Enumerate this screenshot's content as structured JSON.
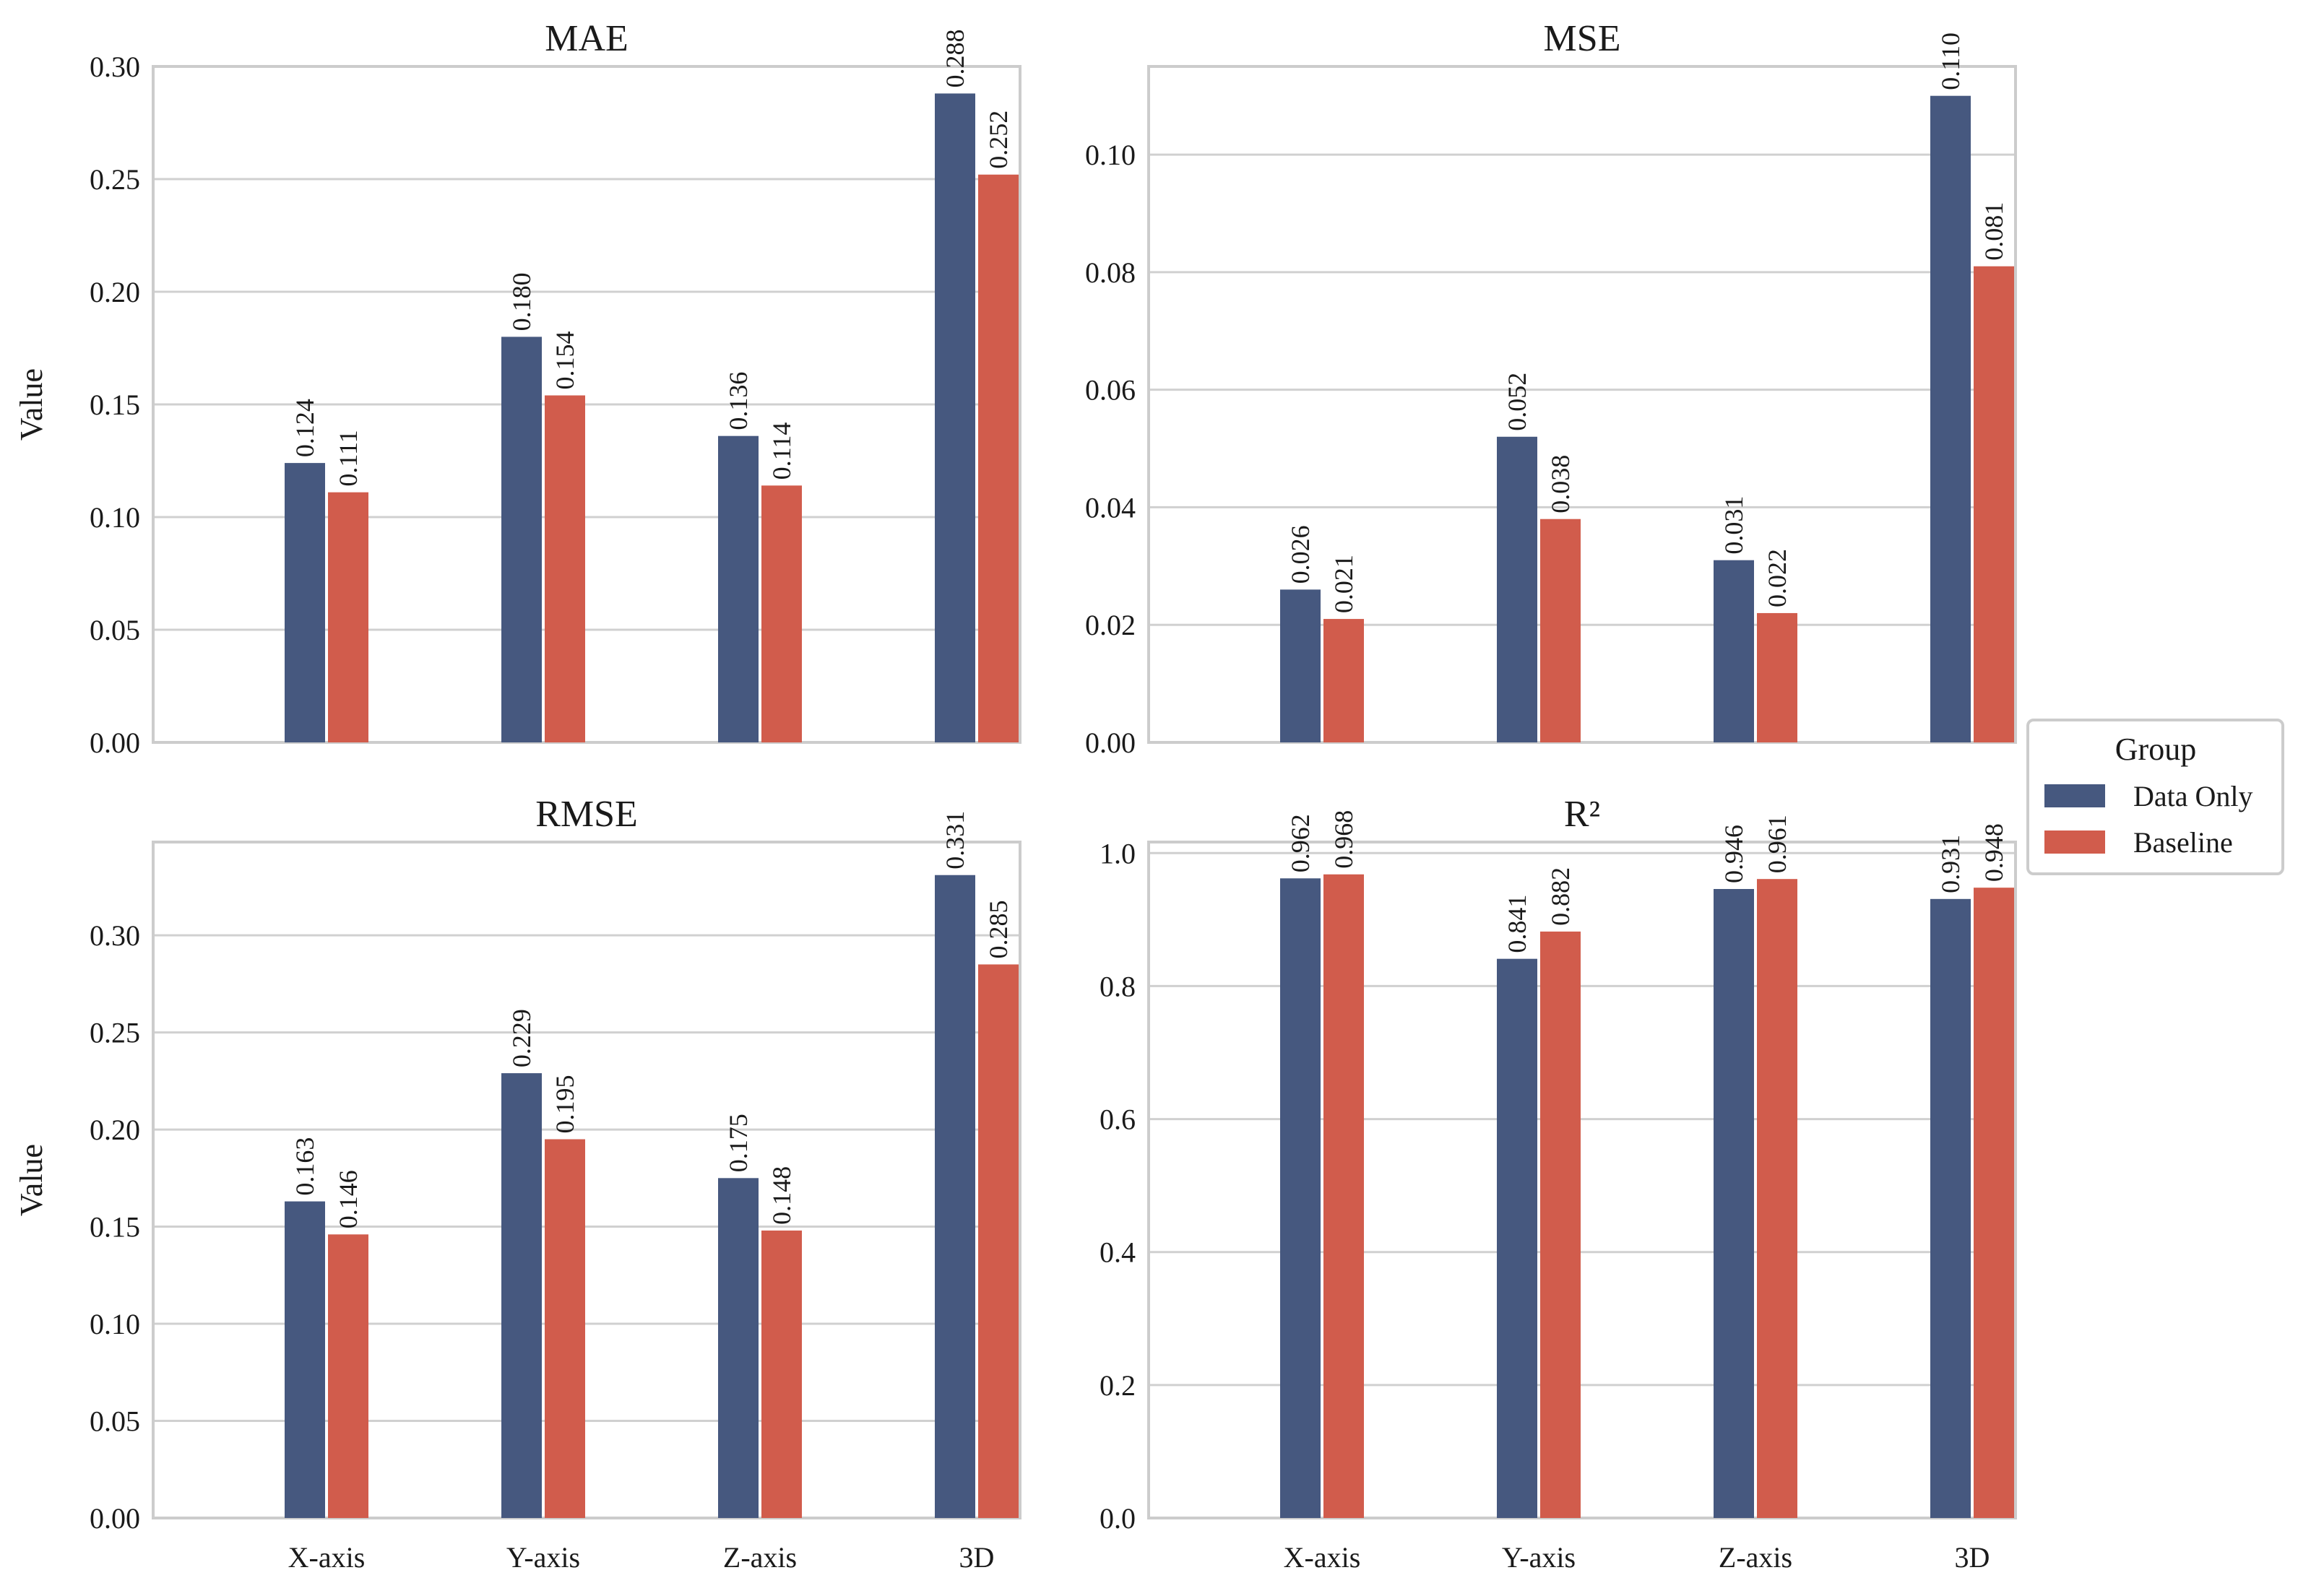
{
  "chart_data": [
    {
      "type": "bar",
      "title": "MAE",
      "xlabel": "",
      "ylabel": "Value",
      "categories": [
        "X-axis",
        "Y-axis",
        "Z-axis",
        "3D"
      ],
      "ylim": [
        0,
        0.3
      ],
      "yticks": [
        "0.00",
        "0.05",
        "0.10",
        "0.15",
        "0.20",
        "0.25",
        "0.30"
      ],
      "ytick_values": [
        0,
        0.05,
        0.1,
        0.15,
        0.2,
        0.25,
        0.3
      ],
      "show_xticks": false,
      "series": [
        {
          "name": "Data Only",
          "values": [
            0.124,
            0.18,
            0.136,
            0.288
          ],
          "labels": [
            "0.124",
            "0.180",
            "0.136",
            "0.288"
          ]
        },
        {
          "name": "Baseline",
          "values": [
            0.111,
            0.154,
            0.114,
            0.252
          ],
          "labels": [
            "0.111",
            "0.154",
            "0.114",
            "0.252"
          ]
        }
      ]
    },
    {
      "type": "bar",
      "title": "MSE",
      "xlabel": "",
      "ylabel": "",
      "categories": [
        "X-axis",
        "Y-axis",
        "Z-axis",
        "3D"
      ],
      "ylim": [
        0,
        0.115
      ],
      "yticks": [
        "0.00",
        "0.02",
        "0.04",
        "0.06",
        "0.08",
        "0.10"
      ],
      "ytick_values": [
        0,
        0.02,
        0.04,
        0.06,
        0.08,
        0.1
      ],
      "show_xticks": false,
      "series": [
        {
          "name": "Data Only",
          "values": [
            0.026,
            0.052,
            0.031,
            0.11
          ],
          "labels": [
            "0.026",
            "0.052",
            "0.031",
            "0.110"
          ]
        },
        {
          "name": "Baseline",
          "values": [
            0.021,
            0.038,
            0.022,
            0.081
          ],
          "labels": [
            "0.021",
            "0.038",
            "0.022",
            "0.081"
          ]
        }
      ]
    },
    {
      "type": "bar",
      "title": "RMSE",
      "xlabel": "",
      "ylabel": "Value",
      "categories": [
        "X-axis",
        "Y-axis",
        "Z-axis",
        "3D"
      ],
      "ylim": [
        0,
        0.348
      ],
      "yticks": [
        "0.00",
        "0.05",
        "0.10",
        "0.15",
        "0.20",
        "0.25",
        "0.30"
      ],
      "ytick_values": [
        0,
        0.05,
        0.1,
        0.15,
        0.2,
        0.25,
        0.3
      ],
      "show_xticks": true,
      "series": [
        {
          "name": "Data Only",
          "values": [
            0.163,
            0.229,
            0.175,
            0.331
          ],
          "labels": [
            "0.163",
            "0.229",
            "0.175",
            "0.331"
          ]
        },
        {
          "name": "Baseline",
          "values": [
            0.146,
            0.195,
            0.148,
            0.285
          ],
          "labels": [
            "0.146",
            "0.195",
            "0.148",
            "0.285"
          ]
        }
      ]
    },
    {
      "type": "bar",
      "title": "R²",
      "xlabel": "",
      "ylabel": "",
      "categories": [
        "X-axis",
        "Y-axis",
        "Z-axis",
        "3D"
      ],
      "ylim": [
        0,
        1.0166
      ],
      "yticks": [
        "0.0",
        "0.2",
        "0.4",
        "0.6",
        "0.8",
        "1.0"
      ],
      "ytick_values": [
        0,
        0.2,
        0.4,
        0.6,
        0.8,
        1.0
      ],
      "show_xticks": true,
      "series": [
        {
          "name": "Data Only",
          "values": [
            0.962,
            0.841,
            0.946,
            0.931
          ],
          "labels": [
            "0.962",
            "0.841",
            "0.946",
            "0.931"
          ]
        },
        {
          "name": "Baseline",
          "values": [
            0.968,
            0.882,
            0.961,
            0.948
          ],
          "labels": [
            "0.968",
            "0.882",
            "0.961",
            "0.948"
          ]
        }
      ]
    }
  ],
  "legend": {
    "title": "Group",
    "items": [
      {
        "label": "Data Only",
        "color": "#46587f"
      },
      {
        "label": "Baseline",
        "color": "#d15c4c"
      }
    ]
  },
  "colors": {
    "data_only": "#46587f",
    "baseline": "#d15c4c"
  }
}
